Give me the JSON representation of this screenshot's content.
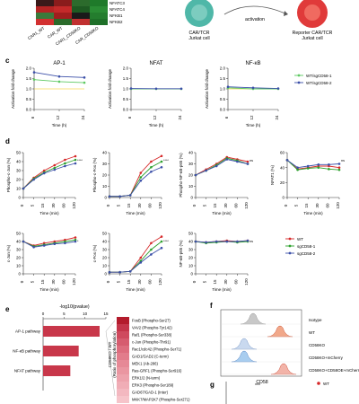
{
  "top": {
    "genes": [
      "NFATC3",
      "NFATC4",
      "NFKB1",
      "NFKB2"
    ],
    "samples": [
      "CAR1_WT",
      "CAR_WT",
      "CAR1_CD58KO",
      "CAR_CD58KO"
    ],
    "cell_left_label": "CAR/TCR\nJurkat cell",
    "arrow_label": "activation",
    "cell_right_label": "Reporter CAR/TCR\nJurkat cell"
  },
  "panels": {
    "c": "c",
    "d": "d",
    "e": "e",
    "f": "f",
    "g": "g"
  },
  "panel_c": {
    "titles": [
      "AP-1",
      "NFAT",
      "NF-κB"
    ],
    "ylabel": "Activation fold change",
    "xlabel": "Time (h)",
    "xticks": [
      "6",
      "12",
      "24"
    ],
    "yticks": [
      "0.0",
      "0.5",
      "1.0",
      "1.5",
      "2.0"
    ],
    "legend": [
      "WT/sgCD58-1",
      "WT/sgCD58-2"
    ]
  },
  "panel_d": {
    "xlabel": "Time (min)",
    "xticks": [
      "0",
      "5",
      "15",
      "30",
      "60",
      "120"
    ],
    "row1_ylabels": [
      "Phospho-c-Jun (%)",
      "Phospho-c-Fos (%)",
      "Phospho-NF-κB-p65 (%)",
      "NFAT1 (%)"
    ],
    "row2_ylabels": [
      "c-Jun (%)",
      "c-Fos (%)",
      "NF-κB-p65 (%)"
    ],
    "legend": [
      "WT",
      "sgCD58-1",
      "sgCD58-2"
    ],
    "sig": [
      "****",
      "****",
      "ns",
      "ns",
      "*",
      "****",
      "ns"
    ]
  },
  "panel_e": {
    "axis_title": "-log10(pvalue)",
    "ticks": [
      "0",
      "5",
      "10",
      "15"
    ],
    "pathways": [
      "AP-1 pathway",
      "NF-κB pathway",
      "NFAT pathway"
    ],
    "proteins": [
      "FosB (Phospho-Ser27)",
      "VAV2 (Phospho-Tyr142)",
      "Raf1 (Phospho-Ser338)",
      "c-Jun (Phospho-Thr91)",
      "Rac1/cdc42 (Phospho-Ser71)",
      "GAD1/GAD2 (C-term)",
      "MEK1 (Ab-286)",
      "Ras-GRF1 (Phospho-Ser916)",
      "ERK1/2 (N-term)",
      "ERK3 (Phospho-Ser189)",
      "GAD67/GAD-1 (Inter)",
      "MKK7/MAP2K7 (Phospho-Ser271)"
    ],
    "vertical_label": "CD58KO / WT\n(Ratio of phosphorylation)"
  },
  "panel_f": {
    "legend": [
      "Isotype",
      "WT",
      "CD58KO",
      "CD58KO+mCherry",
      "CD58KO+CD58OE+mCherry"
    ],
    "xlabel": "CD58"
  },
  "panel_g": {
    "sig": "***",
    "legend": [
      "WT"
    ]
  },
  "chart_data": [
    {
      "type": "line",
      "title": "AP-1",
      "x": [
        6,
        12,
        24
      ],
      "xlabel": "Time (h)",
      "ylabel": "Activation fold change",
      "ylim": [
        0,
        2.0
      ],
      "series": [
        {
          "name": "WT/sgCD58-1",
          "values": [
            1.45,
            1.35,
            1.3
          ]
        },
        {
          "name": "WT/sgCD58-2",
          "values": [
            1.8,
            1.6,
            1.55
          ]
        }
      ]
    },
    {
      "type": "line",
      "title": "NFAT",
      "x": [
        6,
        12,
        24
      ],
      "xlabel": "Time (h)",
      "ylim": [
        0,
        2.0
      ],
      "series": [
        {
          "name": "WT/sgCD58-1",
          "values": [
            1.0,
            1.0,
            1.0
          ]
        },
        {
          "name": "WT/sgCD58-2",
          "values": [
            1.02,
            1.01,
            1.01
          ]
        }
      ]
    },
    {
      "type": "line",
      "title": "NF-κB",
      "x": [
        6,
        12,
        24
      ],
      "xlabel": "Time (h)",
      "ylim": [
        0,
        2.0
      ],
      "series": [
        {
          "name": "WT/sgCD58-1",
          "values": [
            1.05,
            1.0,
            1.0
          ]
        },
        {
          "name": "WT/sgCD58-2",
          "values": [
            1.1,
            1.05,
            1.02
          ]
        }
      ]
    },
    {
      "type": "line",
      "ylabel": "Phospho-c-Jun (%)",
      "x": [
        0,
        5,
        15,
        30,
        60,
        120
      ],
      "ylim": [
        0,
        50
      ],
      "series": [
        {
          "name": "WT",
          "values": [
            10,
            22,
            30,
            36,
            42,
            46
          ]
        },
        {
          "name": "sgCD58-1",
          "values": [
            10,
            21,
            28,
            33,
            38,
            42
          ]
        },
        {
          "name": "sgCD58-2",
          "values": [
            10,
            20,
            27,
            31,
            35,
            38
          ]
        }
      ]
    },
    {
      "type": "line",
      "ylabel": "Phospho-c-Fos (%)",
      "x": [
        0,
        5,
        15,
        30,
        60,
        120
      ],
      "ylim": [
        0,
        40
      ],
      "series": [
        {
          "name": "WT",
          "values": [
            1,
            1,
            2,
            22,
            32,
            37
          ]
        },
        {
          "name": "sgCD58-1",
          "values": [
            1,
            1,
            2,
            18,
            27,
            32
          ]
        },
        {
          "name": "sgCD58-2",
          "values": [
            1,
            1,
            2,
            15,
            23,
            27
          ]
        }
      ]
    },
    {
      "type": "line",
      "ylabel": "Phospho-NF-κB-p65 (%)",
      "x": [
        0,
        5,
        15,
        30,
        60,
        120
      ],
      "ylim": [
        0,
        40
      ],
      "series": [
        {
          "name": "WT",
          "values": [
            20,
            25,
            30,
            36,
            34,
            32
          ]
        },
        {
          "name": "sgCD58-1",
          "values": [
            20,
            24,
            29,
            35,
            33,
            30
          ]
        },
        {
          "name": "sgCD58-2",
          "values": [
            20,
            24,
            28,
            34,
            32,
            30
          ]
        }
      ]
    },
    {
      "type": "line",
      "ylabel": "NFAT1 (%)",
      "x": [
        0,
        5,
        15,
        30,
        60,
        120
      ],
      "ylim": [
        0,
        60
      ],
      "series": [
        {
          "name": "WT",
          "values": [
            50,
            38,
            40,
            42,
            42,
            40
          ]
        },
        {
          "name": "sgCD58-1",
          "values": [
            50,
            37,
            39,
            40,
            38,
            37
          ]
        },
        {
          "name": "sgCD58-2",
          "values": [
            50,
            40,
            42,
            44,
            44,
            45
          ]
        }
      ]
    },
    {
      "type": "line",
      "ylabel": "c-Jun (%)",
      "x": [
        0,
        5,
        15,
        30,
        60,
        120
      ],
      "ylim": [
        0,
        50
      ],
      "series": [
        {
          "name": "WT",
          "values": [
            40,
            35,
            38,
            40,
            42,
            45
          ]
        },
        {
          "name": "sgCD58-1",
          "values": [
            40,
            34,
            36,
            38,
            40,
            42
          ]
        },
        {
          "name": "sgCD58-2",
          "values": [
            40,
            33,
            35,
            37,
            38,
            40
          ]
        }
      ]
    },
    {
      "type": "line",
      "ylabel": "c-Fos (%)",
      "x": [
        0,
        5,
        15,
        30,
        60,
        120
      ],
      "ylim": [
        0,
        50
      ],
      "series": [
        {
          "name": "WT",
          "values": [
            2,
            2,
            3,
            20,
            38,
            46
          ]
        },
        {
          "name": "sgCD58-1",
          "values": [
            2,
            2,
            3,
            16,
            30,
            40
          ]
        },
        {
          "name": "sgCD58-2",
          "values": [
            2,
            2,
            3,
            14,
            24,
            32
          ]
        }
      ]
    },
    {
      "type": "line",
      "ylabel": "NF-κB-p65 (%)",
      "x": [
        0,
        5,
        15,
        30,
        60,
        120
      ],
      "ylim": [
        0,
        50
      ],
      "series": [
        {
          "name": "WT",
          "values": [
            40,
            39,
            40,
            41,
            40,
            41
          ]
        },
        {
          "name": "sgCD58-1",
          "values": [
            40,
            38,
            39,
            40,
            39,
            40
          ]
        },
        {
          "name": "sgCD58-2",
          "values": [
            40,
            39,
            40,
            40,
            40,
            41
          ]
        }
      ]
    },
    {
      "type": "bar",
      "xlabel": "-log10(pvalue)",
      "categories": [
        "AP-1 pathway",
        "NF-κB pathway",
        "NFAT pathway"
      ],
      "values": [
        13.5,
        8.5,
        6.5
      ],
      "xlim": [
        0,
        15
      ]
    }
  ],
  "colors": {
    "wt": "#d62728",
    "sg1": "#2ca02c",
    "sg2": "#3b4fa8",
    "c1": "#5ec962",
    "c2": "#3b4fa8",
    "bar": "#c8374a",
    "heat": [
      "#b31b2c",
      "#c4354a",
      "#cf4a5e",
      "#d65c6f",
      "#dd6d7e",
      "#e27c8b",
      "#e68996",
      "#ea96a1",
      "#eda2ac",
      "#f0adb6",
      "#f3b8c0",
      "#f6c4ca"
    ]
  }
}
